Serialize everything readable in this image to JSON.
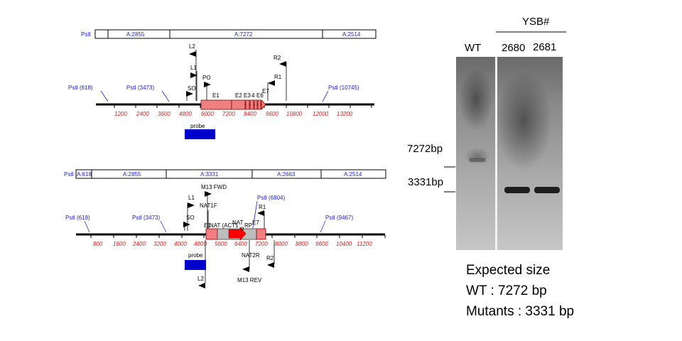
{
  "map1": {
    "segments": [
      {
        "label": "PstI"
      },
      {
        "label": "A:2855"
      },
      {
        "label": "A:7272"
      },
      {
        "label": "A:2514"
      }
    ],
    "ticks": [
      "1200",
      "2400",
      "3600",
      "4800",
      "6000",
      "7200",
      "8400",
      "9600",
      "10800",
      "12000",
      "13200"
    ],
    "sites": [
      "PstI (618)",
      "PstI (3473)",
      "PstI (10745)"
    ],
    "primers": [
      "L2",
      "L1",
      "PO",
      "SO",
      "R2",
      "R1"
    ],
    "exons": [
      "E1",
      "E2",
      "E3",
      "4",
      "E6",
      "E7"
    ],
    "probe": "probe"
  },
  "map2": {
    "segments": [
      {
        "label": "PstI"
      },
      {
        "label": "A:618"
      },
      {
        "label": "A:2855"
      },
      {
        "label": "A:3331"
      },
      {
        "label": "A:2663"
      },
      {
        "label": "A:2514"
      }
    ],
    "ticks": [
      "800",
      "1600",
      "2400",
      "3200",
      "4000",
      "4800",
      "5600",
      "6400",
      "7200",
      "8000",
      "8800",
      "9600",
      "10400",
      "11200"
    ],
    "sites": [
      "PstI (618)",
      "PstI (3473)",
      "PstI (6804)",
      "PstI (9467)"
    ],
    "primers": [
      "M13 FWD",
      "NAT1F",
      "L1",
      "SO",
      "R1",
      "E7",
      "NAT2R",
      "R2",
      "M13 REV",
      "L2"
    ],
    "cassette": [
      "E1",
      "NAT (ACT1",
      "NAT",
      "RP",
      "p"
    ],
    "probe": "probe"
  },
  "blot": {
    "group_label": "YSB#",
    "lanes": [
      "WT",
      "2680",
      "2681"
    ],
    "markers": [
      "7272bp",
      "3331bp"
    ]
  },
  "expected": {
    "title": "Expected size",
    "lines": [
      "WT : 7272 bp",
      "Mutants : 3331 bp"
    ]
  },
  "colors": {
    "site_text": "#2222cc",
    "tick_text": "#e02020",
    "exon_fill": "#f08080",
    "probe_fill": "#0000cc",
    "nat_arrow": "#ff0000",
    "cassette_fill": "#bdbdbd"
  }
}
